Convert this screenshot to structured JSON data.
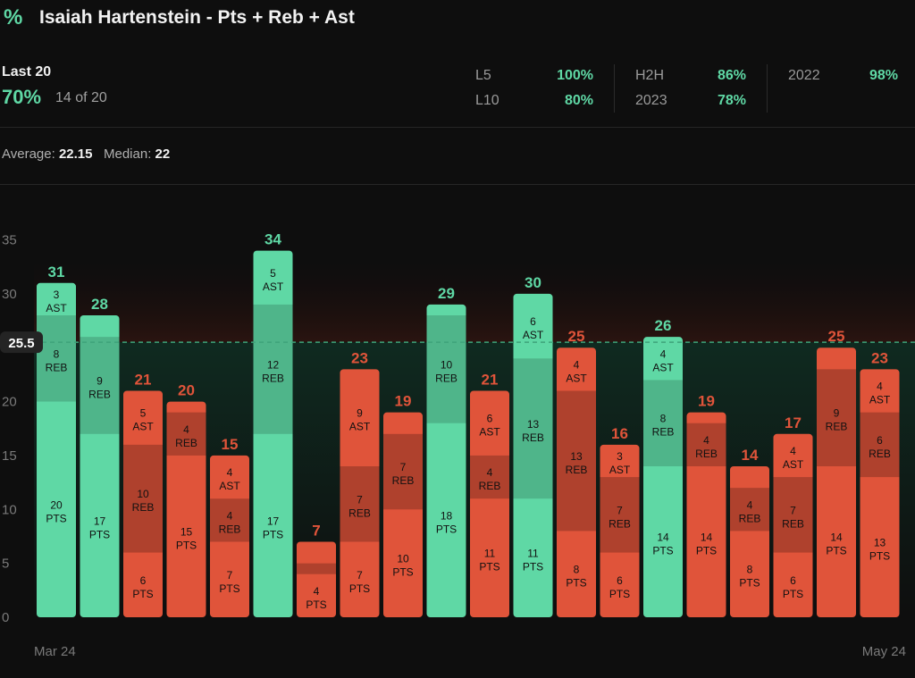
{
  "header": {
    "icon": "percent-icon",
    "title": "Isaiah Hartenstein - Pts + Reb + Ast"
  },
  "summary": {
    "label": "Last 20",
    "pct": "70%",
    "count": "14 of 20"
  },
  "splits": [
    {
      "label": "L5",
      "value": "100%"
    },
    {
      "label": "L10",
      "value": "80%"
    },
    {
      "label": "H2H",
      "value": "86%"
    },
    {
      "label": "2023",
      "value": "78%"
    },
    {
      "label": "2022",
      "value": "98%"
    }
  ],
  "averages": {
    "average_label": "Average:",
    "average_value": "22.15",
    "median_label": "Median:",
    "median_value": "22"
  },
  "colors": {
    "hit": "#5fd8a5",
    "miss": "#e0543a",
    "background": "#0e0e0e"
  },
  "chart_data": {
    "type": "bar",
    "stacked": true,
    "line": 25.5,
    "ylim": [
      0,
      35
    ],
    "yticks": [
      0,
      5,
      10,
      15,
      20,
      25,
      30,
      35
    ],
    "grid": false,
    "x_start_label": "Mar 24",
    "x_end_label": "May 24",
    "games": [
      {
        "total": 31,
        "pts": 20,
        "reb": 8,
        "ast": 3
      },
      {
        "total": 28,
        "pts": 17,
        "reb": 9,
        "ast": 2
      },
      {
        "total": 21,
        "pts": 6,
        "reb": 10,
        "ast": 5
      },
      {
        "total": 20,
        "pts": 15,
        "reb": 4,
        "ast": 1
      },
      {
        "total": 15,
        "pts": 7,
        "reb": 4,
        "ast": 4
      },
      {
        "total": 34,
        "pts": 17,
        "reb": 12,
        "ast": 5
      },
      {
        "total": 7,
        "pts": 4,
        "reb": 1,
        "ast": 2
      },
      {
        "total": 23,
        "pts": 7,
        "reb": 7,
        "ast": 9
      },
      {
        "total": 19,
        "pts": 10,
        "reb": 7,
        "ast": 2
      },
      {
        "total": 29,
        "pts": 18,
        "reb": 10,
        "ast": 1
      },
      {
        "total": 21,
        "pts": 11,
        "reb": 4,
        "ast": 6
      },
      {
        "total": 30,
        "pts": 11,
        "reb": 13,
        "ast": 6
      },
      {
        "total": 25,
        "pts": 8,
        "reb": 13,
        "ast": 4
      },
      {
        "total": 16,
        "pts": 6,
        "reb": 7,
        "ast": 3
      },
      {
        "total": 26,
        "pts": 14,
        "reb": 8,
        "ast": 4
      },
      {
        "total": 19,
        "pts": 14,
        "reb": 4,
        "ast": 1
      },
      {
        "total": 14,
        "pts": 8,
        "reb": 4,
        "ast": 2
      },
      {
        "total": 17,
        "pts": 6,
        "reb": 7,
        "ast": 4
      },
      {
        "total": 25,
        "pts": 14,
        "reb": 9,
        "ast": 2
      },
      {
        "total": 23,
        "pts": 13,
        "reb": 6,
        "ast": 4
      }
    ],
    "segment_labels": {
      "pts": "PTS",
      "reb": "REB",
      "ast": "AST"
    }
  }
}
